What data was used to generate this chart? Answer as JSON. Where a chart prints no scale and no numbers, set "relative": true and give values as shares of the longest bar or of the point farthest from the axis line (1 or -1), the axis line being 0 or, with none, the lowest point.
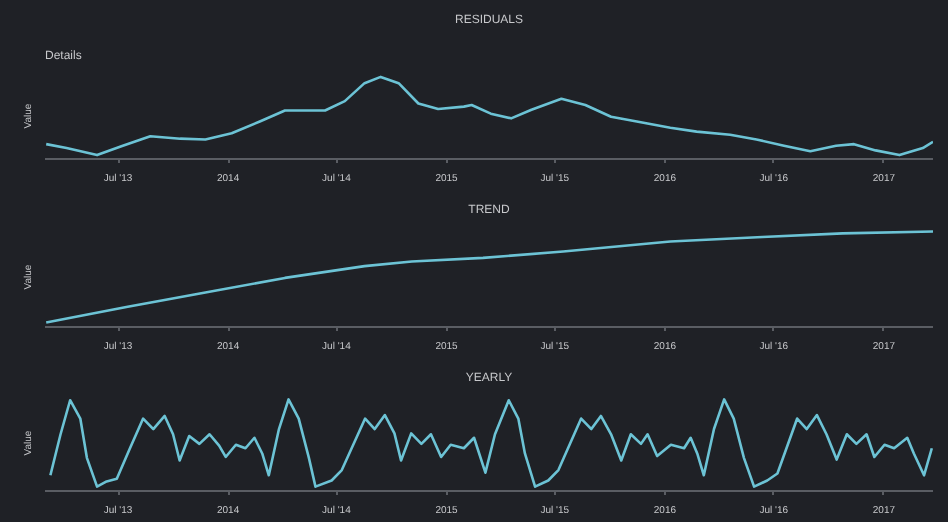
{
  "chart_data": [
    {
      "type": "line",
      "title": "RESIDUALS",
      "ylabel": "Value",
      "annotations": [
        "Details"
      ],
      "relative": true,
      "grid": false,
      "marker": "none",
      "line_style": "solid",
      "xlim": [
        "2013-03-01",
        "2017-03-24"
      ],
      "xticks": [
        {
          "value": "2013-07-01",
          "label": "Jul '13"
        },
        {
          "value": "2014-01-01",
          "label": "2014"
        },
        {
          "value": "2014-07-01",
          "label": "Jul '14"
        },
        {
          "value": "2015-01-01",
          "label": "2015"
        },
        {
          "value": "2015-07-01",
          "label": "Jul '15"
        },
        {
          "value": "2016-01-01",
          "label": "2016"
        },
        {
          "value": "2016-07-01",
          "label": "Jul '16"
        },
        {
          "value": "2017-01-01",
          "label": "2017"
        }
      ],
      "x": [
        "2013-03-03",
        "2013-04-06",
        "2013-05-27",
        "2013-07-09",
        "2013-08-24",
        "2013-10-13",
        "2013-11-24",
        "2014-01-07",
        "2014-02-23",
        "2014-04-06",
        "2014-06-12",
        "2014-07-15",
        "2014-08-17",
        "2014-09-13",
        "2014-10-13",
        "2014-11-15",
        "2014-12-18",
        "2015-01-30",
        "2015-02-12",
        "2015-03-16",
        "2015-04-19",
        "2015-05-23",
        "2015-07-12",
        "2015-08-21",
        "2015-10-03",
        "2015-11-15",
        "2016-01-10",
        "2016-02-23",
        "2016-04-19",
        "2016-06-02",
        "2016-07-18",
        "2016-08-31",
        "2016-10-13",
        "2016-11-12",
        "2016-12-18",
        "2017-01-27",
        "2017-03-07",
        "2017-03-24"
      ],
      "series": [
        {
          "color": "#6cc3d5",
          "values": [
            0.14,
            0.09,
            0,
            0.12,
            0.24,
            0.21,
            0.2,
            0.28,
            0.43,
            0.57,
            0.57,
            0.69,
            0.92,
            1,
            0.92,
            0.66,
            0.59,
            0.62,
            0.64,
            0.53,
            0.47,
            0.58,
            0.72,
            0.64,
            0.49,
            0.43,
            0.35,
            0.3,
            0.26,
            0.2,
            0.12,
            0.05,
            0.12,
            0.14,
            0.06,
            0,
            0.09,
            0.17
          ]
        }
      ]
    },
    {
      "type": "line",
      "title": "TREND",
      "ylabel": "Value",
      "relative": true,
      "grid": false,
      "marker": "none",
      "line_style": "solid",
      "xlim": [
        "2013-03-01",
        "2017-03-24"
      ],
      "xticks": [
        {
          "value": "2013-07-01",
          "label": "Jul '13"
        },
        {
          "value": "2014-01-01",
          "label": "2014"
        },
        {
          "value": "2014-07-01",
          "label": "Jul '14"
        },
        {
          "value": "2015-01-01",
          "label": "2015"
        },
        {
          "value": "2015-07-01",
          "label": "Jul '15"
        },
        {
          "value": "2016-01-01",
          "label": "2016"
        },
        {
          "value": "2016-07-01",
          "label": "Jul '16"
        },
        {
          "value": "2017-01-01",
          "label": "2017"
        }
      ],
      "x": [
        "2013-03-03",
        "2013-07-15",
        "2013-11-24",
        "2014-04-06",
        "2014-08-17",
        "2014-11-04",
        "2015-03-03",
        "2015-07-15",
        "2016-01-10",
        "2016-06-12",
        "2016-10-24",
        "2017-03-24"
      ],
      "series": [
        {
          "color": "#6cc3d5",
          "values": [
            0,
            0.17,
            0.33,
            0.49,
            0.62,
            0.67,
            0.71,
            0.78,
            0.89,
            0.94,
            0.98,
            1
          ]
        }
      ]
    },
    {
      "type": "line",
      "title": "YEARLY",
      "ylabel": "Value",
      "relative": true,
      "grid": false,
      "marker": "none",
      "line_style": "solid",
      "xlim": [
        "2013-03-01",
        "2017-03-24"
      ],
      "xticks": [
        {
          "value": "2013-07-01",
          "label": "Jul '13"
        },
        {
          "value": "2014-01-01",
          "label": "2014"
        },
        {
          "value": "2014-07-01",
          "label": "Jul '14"
        },
        {
          "value": "2015-01-01",
          "label": "2015"
        },
        {
          "value": "2015-07-01",
          "label": "Jul '15"
        },
        {
          "value": "2016-01-01",
          "label": "2016"
        },
        {
          "value": "2016-07-01",
          "label": "Jul '16"
        },
        {
          "value": "2017-01-01",
          "label": "2017"
        }
      ],
      "x": [
        "2013-03-10",
        "2013-03-27",
        "2013-04-12",
        "2013-04-29",
        "2013-05-10",
        "2013-05-27",
        "2013-06-12",
        "2013-06-29",
        "2013-07-21",
        "2013-08-12",
        "2013-08-29",
        "2013-09-17",
        "2013-10-01",
        "2013-10-12",
        "2013-10-28",
        "2013-11-14",
        "2013-12-01",
        "2013-12-17",
        "2013-12-28",
        "2014-01-14",
        "2014-01-30",
        "2014-02-14",
        "2014-02-27",
        "2014-03-10",
        "2014-03-27",
        "2014-04-12",
        "2014-04-29",
        "2014-05-16",
        "2014-05-27",
        "2014-06-23",
        "2014-07-10",
        "2014-08-18",
        "2014-09-03",
        "2014-09-20",
        "2014-10-06",
        "2014-10-17",
        "2014-11-03",
        "2014-11-20",
        "2014-12-06",
        "2014-12-23",
        "2015-01-08",
        "2015-01-30",
        "2015-02-16",
        "2015-03-07",
        "2015-03-23",
        "2015-04-15",
        "2015-05-01",
        "2015-05-12",
        "2015-05-29",
        "2015-06-20",
        "2015-07-07",
        "2015-08-14",
        "2015-08-31",
        "2015-09-16",
        "2015-10-03",
        "2015-10-20",
        "2015-11-05",
        "2015-11-22",
        "2015-12-03",
        "2015-12-19",
        "2016-01-11",
        "2016-02-02",
        "2016-02-13",
        "2016-02-24",
        "2016-03-06",
        "2016-03-23",
        "2016-04-09",
        "2016-04-25",
        "2016-05-12",
        "2016-05-29",
        "2016-06-20",
        "2016-07-07",
        "2016-08-09",
        "2016-08-25",
        "2016-09-11",
        "2016-09-27",
        "2016-10-14",
        "2016-10-31",
        "2016-11-16",
        "2016-12-03",
        "2016-12-16",
        "2017-01-02",
        "2017-01-18",
        "2017-02-09",
        "2017-02-20",
        "2017-03-09",
        "2017-03-22"
      ],
      "series": [
        {
          "color": "#6cc3d5",
          "values": [
            0.13,
            0.6,
            0.99,
            0.78,
            0.33,
            0,
            0.06,
            0.09,
            0.44,
            0.78,
            0.66,
            0.81,
            0.6,
            0.3,
            0.58,
            0.49,
            0.6,
            0.47,
            0.34,
            0.48,
            0.44,
            0.56,
            0.38,
            0.13,
            0.66,
            1,
            0.78,
            0.33,
            0,
            0.07,
            0.19,
            0.78,
            0.66,
            0.82,
            0.61,
            0.3,
            0.61,
            0.49,
            0.6,
            0.34,
            0.48,
            0.44,
            0.56,
            0.16,
            0.6,
            0.99,
            0.78,
            0.38,
            0,
            0.07,
            0.19,
            0.78,
            0.66,
            0.81,
            0.6,
            0.3,
            0.6,
            0.49,
            0.6,
            0.35,
            0.48,
            0.44,
            0.56,
            0.38,
            0.13,
            0.66,
            1,
            0.78,
            0.33,
            0,
            0.07,
            0.15,
            0.78,
            0.66,
            0.82,
            0.6,
            0.31,
            0.6,
            0.49,
            0.6,
            0.34,
            0.48,
            0.44,
            0.56,
            0.38,
            0.13,
            0.44
          ]
        }
      ]
    }
  ]
}
